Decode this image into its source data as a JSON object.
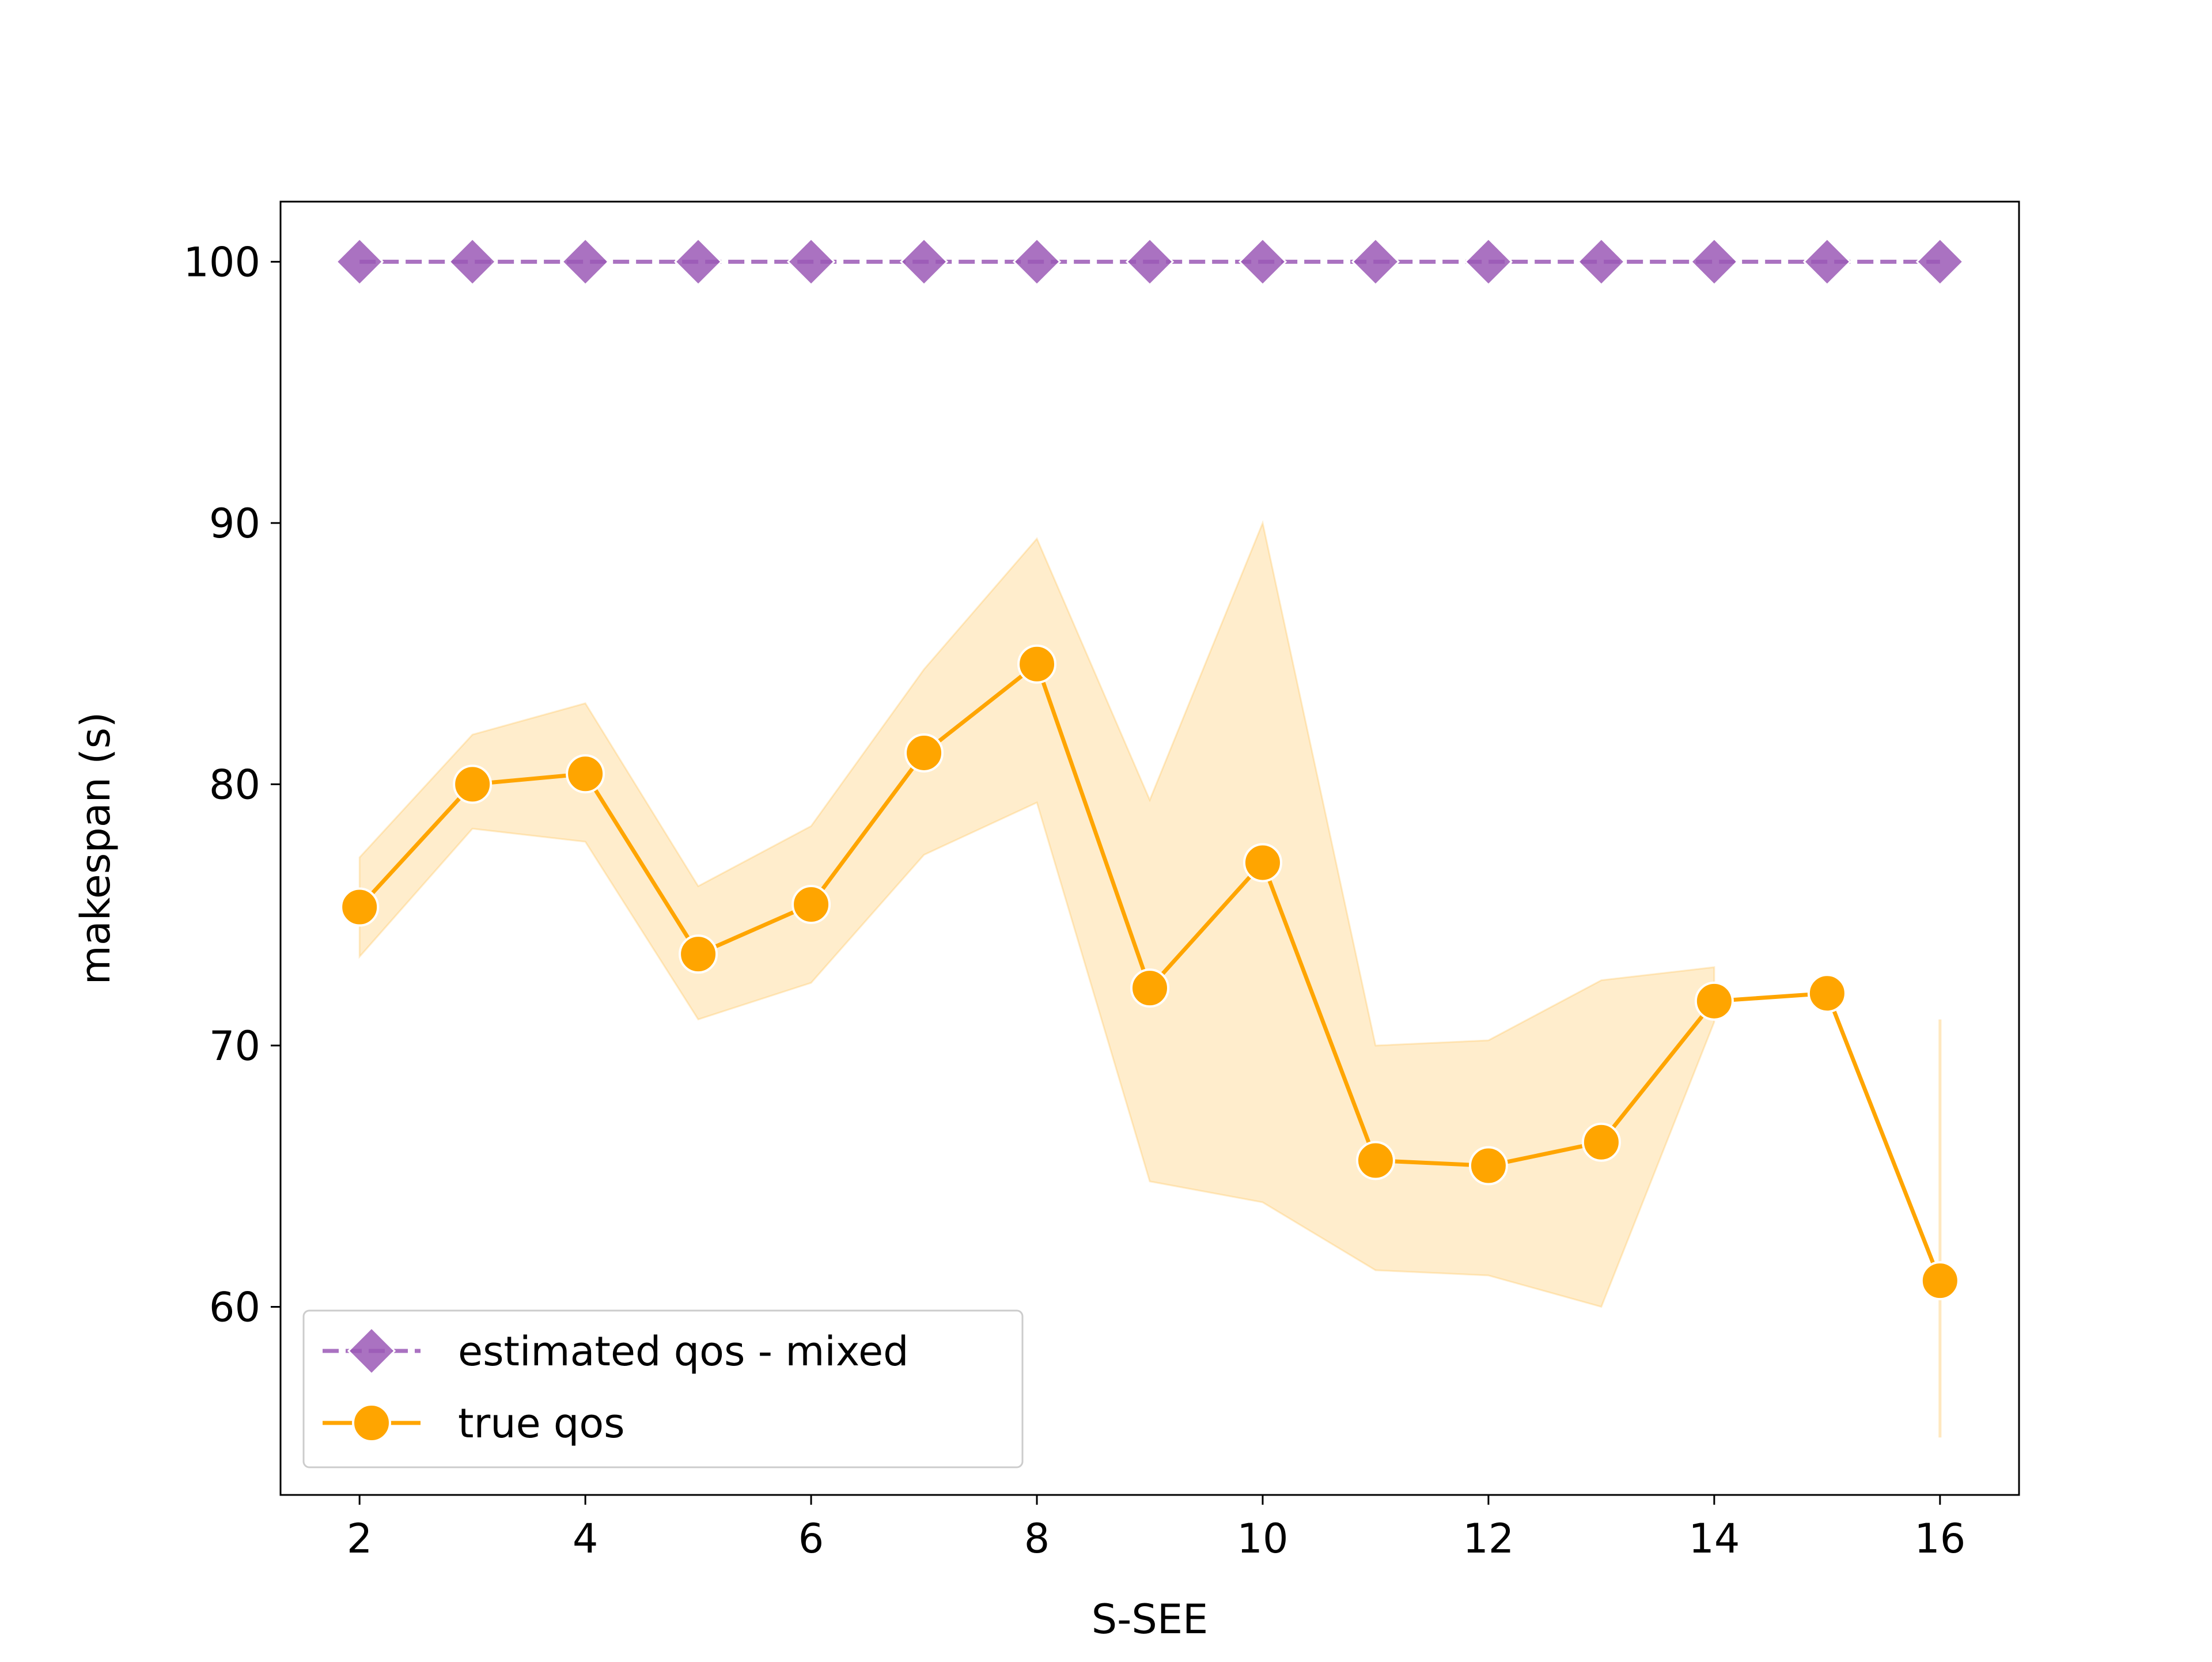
{
  "chart_data": {
    "type": "line",
    "xlabel": "S-SEE",
    "ylabel": "makespan (s)",
    "xlim": [
      1.3,
      16.7
    ],
    "ylim": [
      52.8,
      102.3
    ],
    "xticks": [
      2,
      4,
      6,
      8,
      10,
      12,
      14,
      16
    ],
    "yticks": [
      60,
      70,
      80,
      90,
      100
    ],
    "grid": false,
    "legend": "lower-left",
    "series": [
      {
        "name": "estimated qos - mixed",
        "color": "#9B59B6",
        "marker": "diamond",
        "linestyle": "dashed",
        "x": [
          2,
          3,
          4,
          5,
          6,
          7,
          8,
          9,
          10,
          11,
          12,
          13,
          14,
          15,
          16
        ],
        "y": [
          100,
          100,
          100,
          100,
          100,
          100,
          100,
          100,
          100,
          100,
          100,
          100,
          100,
          100,
          100
        ]
      },
      {
        "name": "true qos",
        "color": "#FFA500",
        "marker": "circle",
        "linestyle": "solid",
        "x": [
          2,
          3,
          4,
          5,
          6,
          7,
          8,
          9,
          10,
          11,
          12,
          13,
          14,
          15,
          16
        ],
        "y": [
          75.3,
          80.0,
          80.4,
          73.5,
          75.4,
          81.2,
          84.6,
          72.2,
          77.0,
          65.6,
          65.4,
          66.3,
          71.7,
          72.0,
          61.0
        ],
        "ci_lower": [
          73.4,
          78.3,
          77.8,
          71.0,
          72.4,
          77.3,
          79.3,
          64.8,
          64.0,
          61.4,
          61.2,
          60.0,
          70.9,
          null,
          55.0
        ],
        "ci_upper": [
          77.2,
          81.9,
          83.1,
          76.1,
          78.4,
          84.4,
          89.4,
          79.4,
          90.0,
          70.0,
          70.2,
          72.5,
          73.0,
          null,
          71.0
        ]
      }
    ]
  }
}
